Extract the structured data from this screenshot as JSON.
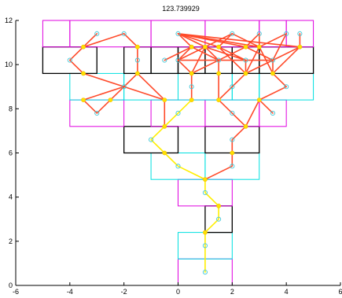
{
  "chart_data": {
    "type": "scatter",
    "title": "123.739929",
    "xlabel": "",
    "ylabel": "",
    "xlim": [
      -6,
      6
    ],
    "ylim": [
      0,
      12
    ],
    "xticks": [
      -6,
      -4,
      -2,
      0,
      2,
      4,
      6
    ],
    "yticks": [
      0,
      2,
      4,
      6,
      8,
      10,
      12
    ],
    "grid": false,
    "colors": {
      "magenta_box": "#e000e0",
      "cyan_box": "#00e0e0",
      "black_box": "#000000",
      "red_edges": "#ff4a2a",
      "yellow_edges": "#ffee00",
      "yellow_nodes": "#ffe000",
      "cyan_nodes": "#40c8d8"
    },
    "rectangles": [
      {
        "color": "magenta",
        "x0": 0,
        "y0": 0,
        "x1": 2,
        "y1": 1.2
      },
      {
        "color": "cyan",
        "x0": 0,
        "y0": 1.2,
        "x1": 2,
        "y1": 2.4
      },
      {
        "color": "black",
        "x0": 1,
        "y0": 2.4,
        "x1": 2,
        "y1": 3.6
      },
      {
        "color": "magenta",
        "x0": 0,
        "y0": 3.6,
        "x1": 2,
        "y1": 4.8
      },
      {
        "color": "cyan",
        "x0": -1,
        "y0": 4.8,
        "x1": 1,
        "y1": 6
      },
      {
        "color": "cyan",
        "x0": 1,
        "y0": 4.8,
        "x1": 3,
        "y1": 6
      },
      {
        "color": "black",
        "x0": -2,
        "y0": 6,
        "x1": 0,
        "y1": 7.2
      },
      {
        "color": "black",
        "x0": 1,
        "y0": 6,
        "x1": 3,
        "y1": 7.2
      },
      {
        "color": "magenta",
        "x0": -4,
        "y0": 7.2,
        "x1": -2,
        "y1": 8.4
      },
      {
        "color": "magenta",
        "x0": -1,
        "y0": 7.2,
        "x1": 1,
        "y1": 8.4
      },
      {
        "color": "magenta",
        "x0": 1,
        "y0": 7.2,
        "x1": 3,
        "y1": 8.4
      },
      {
        "color": "magenta",
        "x0": 3,
        "y0": 7.2,
        "x1": 4,
        "y1": 8.4
      },
      {
        "color": "cyan",
        "x0": -4,
        "y0": 8.4,
        "x1": -2,
        "y1": 9.6
      },
      {
        "color": "cyan",
        "x0": -2,
        "y0": 8.4,
        "x1": 0,
        "y1": 9.6
      },
      {
        "color": "cyan",
        "x0": 0,
        "y0": 8.4,
        "x1": 2,
        "y1": 9.6
      },
      {
        "color": "cyan",
        "x0": 2,
        "y0": 8.4,
        "x1": 3,
        "y1": 9.6
      },
      {
        "color": "cyan",
        "x0": 3,
        "y0": 8.4,
        "x1": 5,
        "y1": 9.6
      },
      {
        "color": "black",
        "x0": -5,
        "y0": 9.6,
        "x1": -3,
        "y1": 10.8
      },
      {
        "color": "black",
        "x0": -2,
        "y0": 9.6,
        "x1": -1,
        "y1": 10.8
      },
      {
        "color": "black",
        "x0": -1,
        "y0": 9.6,
        "x1": 0,
        "y1": 10.8
      },
      {
        "color": "black",
        "x0": 0,
        "y0": 9.6,
        "x1": 1,
        "y1": 10.8
      },
      {
        "color": "black",
        "x0": 1,
        "y0": 9.6,
        "x1": 2,
        "y1": 10.8
      },
      {
        "color": "black",
        "x0": 2,
        "y0": 9.6,
        "x1": 3,
        "y1": 10.8
      },
      {
        "color": "black",
        "x0": 3,
        "y0": 9.6,
        "x1": 5,
        "y1": 10.8
      },
      {
        "color": "magenta",
        "x0": -5,
        "y0": 10.8,
        "x1": -4,
        "y1": 12
      },
      {
        "color": "magenta",
        "x0": -4,
        "y0": 10.8,
        "x1": -1,
        "y1": 12
      },
      {
        "color": "magenta",
        "x0": -1,
        "y0": 10.8,
        "x1": 1,
        "y1": 12
      },
      {
        "color": "magenta",
        "x0": 1,
        "y0": 10.8,
        "x1": 3,
        "y1": 12
      },
      {
        "color": "magenta",
        "x0": 3,
        "y0": 10.8,
        "x1": 4,
        "y1": 12
      },
      {
        "color": "magenta",
        "x0": 4,
        "y0": 10.8,
        "x1": 5,
        "y1": 12
      }
    ],
    "nodes": [
      {
        "type": "cyan",
        "x": 1,
        "y": 0.6
      },
      {
        "type": "cyan",
        "x": 1,
        "y": 1.8
      },
      {
        "type": "yellow",
        "x": 1,
        "y": 2.4
      },
      {
        "type": "cyan",
        "x": 1.5,
        "y": 3
      },
      {
        "type": "yellow",
        "x": 1.5,
        "y": 3.6
      },
      {
        "type": "cyan",
        "x": 1,
        "y": 4.2
      },
      {
        "type": "yellow",
        "x": 1,
        "y": 4.8
      },
      {
        "type": "cyan",
        "x": 0,
        "y": 5.4
      },
      {
        "type": "cyan",
        "x": 2,
        "y": 5.4
      },
      {
        "type": "yellow",
        "x": -0.5,
        "y": 6
      },
      {
        "type": "yellow",
        "x": 2,
        "y": 6
      },
      {
        "type": "cyan",
        "x": -1,
        "y": 6.6
      },
      {
        "type": "cyan",
        "x": 2,
        "y": 6.6
      },
      {
        "type": "yellow",
        "x": -0.5,
        "y": 7.2
      },
      {
        "type": "yellow",
        "x": 2.5,
        "y": 7.2
      },
      {
        "type": "cyan",
        "x": -3,
        "y": 7.8
      },
      {
        "type": "cyan",
        "x": 0,
        "y": 7.8
      },
      {
        "type": "cyan",
        "x": 2,
        "y": 7.8
      },
      {
        "type": "cyan",
        "x": 3.5,
        "y": 7.8
      },
      {
        "type": "yellow",
        "x": -3.5,
        "y": 8.4
      },
      {
        "type": "yellow",
        "x": -2.5,
        "y": 8.4
      },
      {
        "type": "yellow",
        "x": -0.5,
        "y": 8.4
      },
      {
        "type": "yellow",
        "x": 0.5,
        "y": 8.4
      },
      {
        "type": "yellow",
        "x": 1.5,
        "y": 8.4
      },
      {
        "type": "yellow",
        "x": 3,
        "y": 8.4
      },
      {
        "type": "cyan",
        "x": -2,
        "y": 9
      },
      {
        "type": "cyan",
        "x": 0.5,
        "y": 9
      },
      {
        "type": "cyan",
        "x": 2,
        "y": 9
      },
      {
        "type": "cyan",
        "x": 4,
        "y": 9
      },
      {
        "type": "yellow",
        "x": -3.5,
        "y": 9.6
      },
      {
        "type": "yellow",
        "x": -1.5,
        "y": 9.6
      },
      {
        "type": "yellow",
        "x": 0.5,
        "y": 9.6
      },
      {
        "type": "yellow",
        "x": 1.5,
        "y": 9.6
      },
      {
        "type": "yellow",
        "x": 2.5,
        "y": 9.6
      },
      {
        "type": "yellow",
        "x": 3.5,
        "y": 9.6
      },
      {
        "type": "cyan",
        "x": -4,
        "y": 10.2
      },
      {
        "type": "cyan",
        "x": -1.5,
        "y": 10.2
      },
      {
        "type": "cyan",
        "x": -0.5,
        "y": 10.2
      },
      {
        "type": "cyan",
        "x": 0,
        "y": 10.2
      },
      {
        "type": "cyan",
        "x": 1.5,
        "y": 10.2
      },
      {
        "type": "cyan",
        "x": 2.5,
        "y": 10.2
      },
      {
        "type": "cyan",
        "x": 3.5,
        "y": 10.2
      },
      {
        "type": "yellow",
        "x": -3.5,
        "y": 10.8
      },
      {
        "type": "yellow",
        "x": -1.5,
        "y": 10.8
      },
      {
        "type": "yellow",
        "x": 0.5,
        "y": 10.8
      },
      {
        "type": "yellow",
        "x": 1,
        "y": 10.8
      },
      {
        "type": "yellow",
        "x": 1.5,
        "y": 10.8
      },
      {
        "type": "yellow",
        "x": 2.5,
        "y": 10.8
      },
      {
        "type": "yellow",
        "x": 3,
        "y": 10.8
      },
      {
        "type": "yellow",
        "x": 4.5,
        "y": 10.8
      },
      {
        "type": "cyan",
        "x": -3,
        "y": 11.4
      },
      {
        "type": "cyan",
        "x": -2,
        "y": 11.4
      },
      {
        "type": "cyan",
        "x": 0,
        "y": 11.4
      },
      {
        "type": "cyan",
        "x": 2,
        "y": 11.4
      },
      {
        "type": "cyan",
        "x": 3,
        "y": 11.4
      },
      {
        "type": "cyan",
        "x": 4,
        "y": 11.4
      },
      {
        "type": "cyan",
        "x": 4.5,
        "y": 11.4
      }
    ],
    "edges": [
      {
        "color": "yellow",
        "points": [
          [
            1,
            0.6
          ],
          [
            1,
            1.8
          ],
          [
            1,
            2.4
          ],
          [
            1.5,
            3
          ],
          [
            1.5,
            3.6
          ],
          [
            1,
            4.2
          ],
          [
            1,
            4.8
          ],
          [
            0,
            5.4
          ],
          [
            -0.5,
            6
          ],
          [
            -1,
            6.6
          ],
          [
            -0.5,
            7.2
          ],
          [
            0,
            7.8
          ],
          [
            0.5,
            8.4
          ]
        ]
      },
      {
        "color": "red",
        "points": [
          [
            1,
            4.8
          ],
          [
            2,
            5.4
          ],
          [
            2,
            6
          ],
          [
            2,
            6.6
          ],
          [
            2.5,
            7.2
          ],
          [
            3,
            8.4
          ],
          [
            4,
            9
          ],
          [
            3.5,
            9.6
          ],
          [
            4.5,
            10.8
          ],
          [
            4.5,
            11.4
          ]
        ]
      },
      {
        "color": "red",
        "points": [
          [
            2.5,
            7.2
          ],
          [
            2,
            7.8
          ],
          [
            1.5,
            8.4
          ],
          [
            2,
            9
          ],
          [
            2.5,
            9.6
          ],
          [
            3,
            10.8
          ],
          [
            3,
            11.4
          ]
        ]
      },
      {
        "color": "red",
        "points": [
          [
            0.5,
            8.4
          ],
          [
            0.5,
            9
          ],
          [
            0.5,
            9.6
          ],
          [
            0,
            10.2
          ],
          [
            0.5,
            10.8
          ],
          [
            0,
            11.4
          ]
        ]
      },
      {
        "color": "red",
        "points": [
          [
            -0.5,
            7.2
          ],
          [
            -0.5,
            8.4
          ],
          [
            -2,
            9
          ],
          [
            -2.5,
            8.4
          ],
          [
            -3,
            7.8
          ],
          [
            -3.5,
            8.4
          ],
          [
            -2,
            9
          ]
        ]
      },
      {
        "color": "red",
        "points": [
          [
            -2,
            9
          ],
          [
            -1.5,
            9.6
          ],
          [
            -1.5,
            10.2
          ],
          [
            -1.5,
            10.8
          ],
          [
            -2,
            11.4
          ]
        ]
      },
      {
        "color": "red",
        "points": [
          [
            -2,
            9
          ],
          [
            -3.5,
            9.6
          ],
          [
            -4,
            10.2
          ],
          [
            -3.5,
            10.8
          ],
          [
            -3,
            11.4
          ]
        ]
      },
      {
        "color": "red",
        "points": [
          [
            -0.5,
            8.4
          ],
          [
            -1.5,
            9.6
          ]
        ]
      },
      {
        "color": "red",
        "points": [
          [
            3,
            8.4
          ],
          [
            3.5,
            7.8
          ],
          [
            3,
            8.4
          ]
        ]
      },
      {
        "color": "red",
        "points": [
          [
            -3.5,
            10.8
          ],
          [
            -2,
            11.4
          ]
        ]
      },
      {
        "color": "red",
        "points": [
          [
            0,
            11.4
          ],
          [
            1,
            10.8
          ],
          [
            1.5,
            10.2
          ],
          [
            1.5,
            9.6
          ],
          [
            1.5,
            8.4
          ]
        ]
      },
      {
        "color": "red",
        "points": [
          [
            0,
            11.4
          ],
          [
            1.5,
            10.8
          ],
          [
            2.5,
            10.2
          ],
          [
            2.5,
            9.6
          ]
        ]
      },
      {
        "color": "red",
        "points": [
          [
            0,
            11.4
          ],
          [
            2.5,
            10.8
          ],
          [
            3.5,
            10.2
          ],
          [
            3.5,
            9.6
          ]
        ]
      },
      {
        "color": "red",
        "points": [
          [
            0,
            11.4
          ],
          [
            3,
            10.8
          ],
          [
            4,
            11.4
          ]
        ]
      },
      {
        "color": "red",
        "points": [
          [
            0,
            11.4
          ],
          [
            4.5,
            10.8
          ]
        ]
      },
      {
        "color": "red",
        "points": [
          [
            2,
            11.4
          ],
          [
            1,
            10.8
          ],
          [
            0.5,
            9.6
          ]
        ]
      },
      {
        "color": "red",
        "points": [
          [
            2,
            11.4
          ],
          [
            1.5,
            10.8
          ],
          [
            2.5,
            9.6
          ]
        ]
      },
      {
        "color": "red",
        "points": [
          [
            2,
            11.4
          ],
          [
            3,
            10.8
          ],
          [
            3.5,
            9.6
          ]
        ]
      },
      {
        "color": "red",
        "points": [
          [
            3,
            11.4
          ],
          [
            2.5,
            10.8
          ],
          [
            0.5,
            9.6
          ]
        ]
      },
      {
        "color": "red",
        "points": [
          [
            4,
            11.4
          ],
          [
            3.5,
            10.2
          ],
          [
            2.5,
            9.6
          ]
        ]
      },
      {
        "color": "red",
        "points": [
          [
            4.5,
            10.8
          ],
          [
            3.5,
            10.2
          ],
          [
            0,
            10.2
          ]
        ]
      },
      {
        "color": "red",
        "points": [
          [
            -0.5,
            10.2
          ],
          [
            0.5,
            10.8
          ],
          [
            1.5,
            10.2
          ]
        ]
      },
      {
        "color": "red",
        "points": [
          [
            0,
            10.2
          ],
          [
            1,
            10.8
          ],
          [
            2.5,
            10.2
          ]
        ]
      }
    ]
  }
}
